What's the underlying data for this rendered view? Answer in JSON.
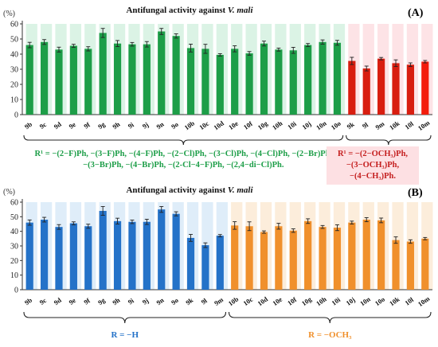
{
  "chart_data": [
    {
      "type": "bar",
      "panel_label": "(A)",
      "title": "Antifungal activity against V. mali",
      "title_prefix": "Antifungal activity against ",
      "title_italic": "V. mali",
      "ylabel": "(%)",
      "ylim": [
        0,
        60
      ],
      "yticks": [
        "0",
        "10",
        "20",
        "30",
        "40",
        "50",
        "60"
      ],
      "grid": false,
      "categories": [
        "9b",
        "9c",
        "9d",
        "9e",
        "9f",
        "9g",
        "9h",
        "9i",
        "9j",
        "9n",
        "9o",
        "10b",
        "10c",
        "10d",
        "10e",
        "10f",
        "10g",
        "10h",
        "10i",
        "10j",
        "10n",
        "10o",
        "9k",
        "9l",
        "9m",
        "10k",
        "10l",
        "10m"
      ],
      "values": [
        46.0,
        48.0,
        43.0,
        45.5,
        43.5,
        54.0,
        47.0,
        46.5,
        46.5,
        55.0,
        52.0,
        44.0,
        43.5,
        39.5,
        43.5,
        40.5,
        47.0,
        43.0,
        42.5,
        46.0,
        48.0,
        47.5,
        35.5,
        30.5,
        37.0,
        34.0,
        33.0,
        35.0
      ],
      "errors": [
        1.8,
        1.6,
        1.6,
        1.0,
        1.4,
        3.0,
        2.0,
        1.2,
        1.8,
        2.0,
        1.4,
        2.6,
        3.0,
        0.8,
        2.0,
        1.2,
        1.6,
        1.0,
        2.0,
        1.0,
        1.4,
        1.6,
        2.4,
        1.6,
        0.8,
        2.2,
        1.2,
        0.8
      ],
      "colors": [
        "#1d9e48",
        "#1d9e48",
        "#1d9e48",
        "#1d9e48",
        "#1d9e48",
        "#1d9e48",
        "#1d9e48",
        "#1d9e48",
        "#1d9e48",
        "#1d9e48",
        "#1d9e48",
        "#1d9e48",
        "#1d9e48",
        "#1d9e48",
        "#1d9e48",
        "#1d9e48",
        "#1d9e48",
        "#1d9e48",
        "#1d9e48",
        "#1d9e48",
        "#1d9e48",
        "#1d9e48",
        "#d81e10",
        "#d81e10",
        "#d81e10",
        "#d81e10",
        "#d81e10",
        "#f31c0c"
      ],
      "shade_color": "#d7f2e2",
      "shade_color_alt": "#fde0e3",
      "groups": [
        {
          "from": 0,
          "to": 21,
          "color": "#1d9e48",
          "lines": [
            "R¹ = −(2−F)Ph, −(3−F)Ph, −(4−F)Ph, −(2−Cl)Ph, −(3−Cl)Ph, −(4−Cl)Ph, −(2−Br)Ph,",
            "−(3−Br)Ph, −(4−Br)Ph, −(2-Cl−4−F)Ph, −(2,4−di−Cl)Ph."
          ]
        },
        {
          "from": 22,
          "to": 27,
          "color": "#c41e1e",
          "lines": [
            "R¹ = −(2−OCH₃)Ph,",
            "−(3−OCH₃)Ph,",
            "−(4−CH₃)Ph."
          ]
        }
      ]
    },
    {
      "type": "bar",
      "panel_label": "(B)",
      "title": "Antifungal activity against V. mali",
      "title_prefix": "Antifungal activity against ",
      "title_italic": "V. mali",
      "ylabel": "(%)",
      "ylim": [
        0,
        60
      ],
      "yticks": [
        "0",
        "10",
        "20",
        "30",
        "40",
        "50",
        "60"
      ],
      "grid": false,
      "categories": [
        "9b",
        "9c",
        "9d",
        "9e",
        "9f",
        "9g",
        "9h",
        "9i",
        "9j",
        "9n",
        "9o",
        "9k",
        "9l",
        "9m",
        "10b",
        "10c",
        "10d",
        "10e",
        "10f",
        "10g",
        "10h",
        "10i",
        "10j",
        "10n",
        "10o",
        "10k",
        "10l",
        "10m"
      ],
      "values": [
        46.0,
        48.0,
        43.0,
        45.5,
        43.5,
        54.0,
        47.0,
        46.5,
        46.5,
        55.0,
        52.0,
        35.5,
        30.5,
        37.0,
        44.0,
        43.5,
        39.5,
        43.5,
        40.5,
        47.0,
        43.0,
        42.5,
        46.0,
        48.0,
        47.5,
        34.0,
        33.0,
        35.0
      ],
      "errors": [
        1.8,
        1.6,
        1.6,
        1.0,
        1.4,
        3.0,
        2.0,
        1.2,
        1.8,
        2.0,
        1.4,
        2.4,
        1.6,
        0.8,
        2.6,
        3.0,
        0.8,
        2.0,
        1.2,
        1.6,
        1.0,
        2.0,
        1.0,
        1.4,
        1.6,
        2.2,
        1.2,
        0.8
      ],
      "colors": [
        "#2472c8",
        "#2472c8",
        "#2472c8",
        "#2472c8",
        "#2472c8",
        "#2472c8",
        "#2472c8",
        "#2472c8",
        "#2472c8",
        "#2472c8",
        "#2472c8",
        "#2472c8",
        "#2472c8",
        "#2472c8",
        "#f0902c",
        "#f0902c",
        "#f0902c",
        "#f0902c",
        "#f0902c",
        "#f0902c",
        "#f0902c",
        "#f0902c",
        "#f0902c",
        "#f0902c",
        "#f0902c",
        "#f0902c",
        "#f0902c",
        "#f0902c"
      ],
      "shade_color": "#dcebf8",
      "shade_color_alt": "#fcebd7",
      "groups": [
        {
          "from": 0,
          "to": 13,
          "color": "#2472c8",
          "lines": [
            "R = −H"
          ]
        },
        {
          "from": 14,
          "to": 27,
          "color": "#f0902c",
          "lines": [
            "R = −OCH₃"
          ]
        }
      ]
    }
  ]
}
